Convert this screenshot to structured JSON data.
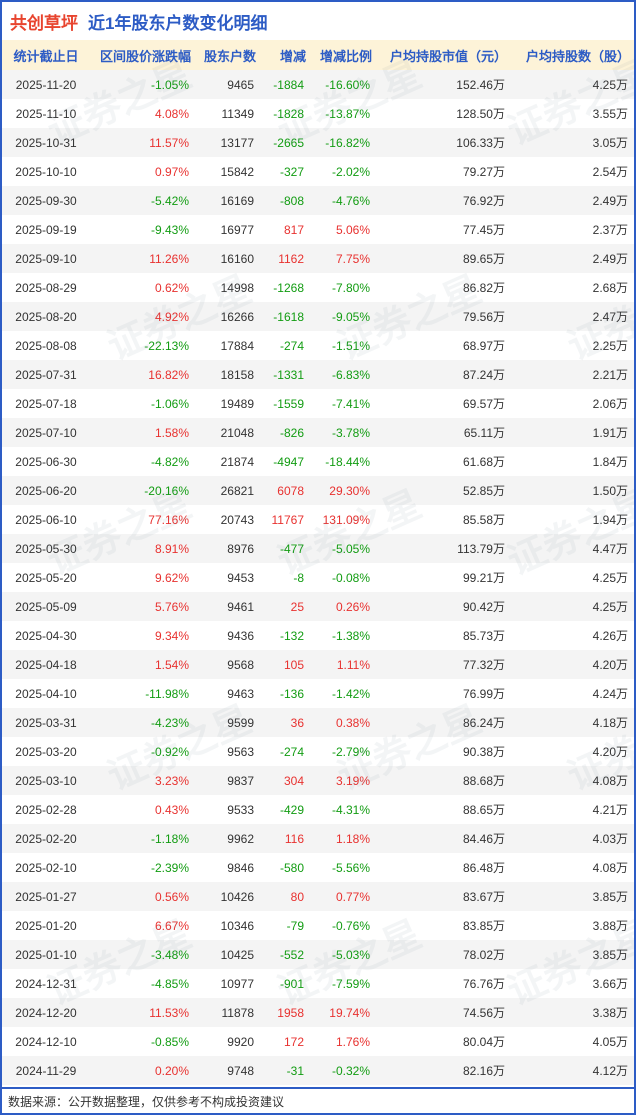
{
  "title": {
    "stock_name": "共创草坪",
    "subtitle": "近1年股东户数变化明细"
  },
  "watermark": "证券之星",
  "footer": {
    "source_note": "数据来源：公开数据整理，仅供参考不构成投资建议"
  },
  "colors": {
    "positive": "#e8312f",
    "negative": "#129c12",
    "header_text": "#2d5cc5",
    "header_bg": "#fdf3d8",
    "frame_border": "#2d5cc5",
    "title_stock": "#e8442e",
    "title_subtitle": "#2d5cc5"
  },
  "chart_data": {
    "type": "table",
    "title": "共创草坪 近1年股东户数变化明细",
    "columns": [
      "统计截止日",
      "区间股价涨跌幅",
      "股东户数",
      "增减",
      "增减比例",
      "户均持股市值（元）",
      "户均持股数（股）"
    ],
    "signed_columns": [
      1,
      3,
      4
    ],
    "rows": [
      [
        "2025-11-20",
        "-1.05%",
        "9465",
        "-1884",
        "-16.60%",
        "152.46万",
        "4.25万"
      ],
      [
        "2025-11-10",
        "4.08%",
        "11349",
        "-1828",
        "-13.87%",
        "128.50万",
        "3.55万"
      ],
      [
        "2025-10-31",
        "11.57%",
        "13177",
        "-2665",
        "-16.82%",
        "106.33万",
        "3.05万"
      ],
      [
        "2025-10-10",
        "0.97%",
        "15842",
        "-327",
        "-2.02%",
        "79.27万",
        "2.54万"
      ],
      [
        "2025-09-30",
        "-5.42%",
        "16169",
        "-808",
        "-4.76%",
        "76.92万",
        "2.49万"
      ],
      [
        "2025-09-19",
        "-9.43%",
        "16977",
        "817",
        "5.06%",
        "77.45万",
        "2.37万"
      ],
      [
        "2025-09-10",
        "11.26%",
        "16160",
        "1162",
        "7.75%",
        "89.65万",
        "2.49万"
      ],
      [
        "2025-08-29",
        "0.62%",
        "14998",
        "-1268",
        "-7.80%",
        "86.82万",
        "2.68万"
      ],
      [
        "2025-08-20",
        "4.92%",
        "16266",
        "-1618",
        "-9.05%",
        "79.56万",
        "2.47万"
      ],
      [
        "2025-08-08",
        "-22.13%",
        "17884",
        "-274",
        "-1.51%",
        "68.97万",
        "2.25万"
      ],
      [
        "2025-07-31",
        "16.82%",
        "18158",
        "-1331",
        "-6.83%",
        "87.24万",
        "2.21万"
      ],
      [
        "2025-07-18",
        "-1.06%",
        "19489",
        "-1559",
        "-7.41%",
        "69.57万",
        "2.06万"
      ],
      [
        "2025-07-10",
        "1.58%",
        "21048",
        "-826",
        "-3.78%",
        "65.11万",
        "1.91万"
      ],
      [
        "2025-06-30",
        "-4.82%",
        "21874",
        "-4947",
        "-18.44%",
        "61.68万",
        "1.84万"
      ],
      [
        "2025-06-20",
        "-20.16%",
        "26821",
        "6078",
        "29.30%",
        "52.85万",
        "1.50万"
      ],
      [
        "2025-06-10",
        "77.16%",
        "20743",
        "11767",
        "131.09%",
        "85.58万",
        "1.94万"
      ],
      [
        "2025-05-30",
        "8.91%",
        "8976",
        "-477",
        "-5.05%",
        "113.79万",
        "4.47万"
      ],
      [
        "2025-05-20",
        "9.62%",
        "9453",
        "-8",
        "-0.08%",
        "99.21万",
        "4.25万"
      ],
      [
        "2025-05-09",
        "5.76%",
        "9461",
        "25",
        "0.26%",
        "90.42万",
        "4.25万"
      ],
      [
        "2025-04-30",
        "9.34%",
        "9436",
        "-132",
        "-1.38%",
        "85.73万",
        "4.26万"
      ],
      [
        "2025-04-18",
        "1.54%",
        "9568",
        "105",
        "1.11%",
        "77.32万",
        "4.20万"
      ],
      [
        "2025-04-10",
        "-11.98%",
        "9463",
        "-136",
        "-1.42%",
        "76.99万",
        "4.24万"
      ],
      [
        "2025-03-31",
        "-4.23%",
        "9599",
        "36",
        "0.38%",
        "86.24万",
        "4.18万"
      ],
      [
        "2025-03-20",
        "-0.92%",
        "9563",
        "-274",
        "-2.79%",
        "90.38万",
        "4.20万"
      ],
      [
        "2025-03-10",
        "3.23%",
        "9837",
        "304",
        "3.19%",
        "88.68万",
        "4.08万"
      ],
      [
        "2025-02-28",
        "0.43%",
        "9533",
        "-429",
        "-4.31%",
        "88.65万",
        "4.21万"
      ],
      [
        "2025-02-20",
        "-1.18%",
        "9962",
        "116",
        "1.18%",
        "84.46万",
        "4.03万"
      ],
      [
        "2025-02-10",
        "-2.39%",
        "9846",
        "-580",
        "-5.56%",
        "86.48万",
        "4.08万"
      ],
      [
        "2025-01-27",
        "0.56%",
        "10426",
        "80",
        "0.77%",
        "83.67万",
        "3.85万"
      ],
      [
        "2025-01-20",
        "6.67%",
        "10346",
        "-79",
        "-0.76%",
        "83.85万",
        "3.88万"
      ],
      [
        "2025-01-10",
        "-3.48%",
        "10425",
        "-552",
        "-5.03%",
        "78.02万",
        "3.85万"
      ],
      [
        "2024-12-31",
        "-4.85%",
        "10977",
        "-901",
        "-7.59%",
        "76.76万",
        "3.66万"
      ],
      [
        "2024-12-20",
        "11.53%",
        "11878",
        "1958",
        "19.74%",
        "74.56万",
        "3.38万"
      ],
      [
        "2024-12-10",
        "-0.85%",
        "9920",
        "172",
        "1.76%",
        "80.04万",
        "4.05万"
      ],
      [
        "2024-11-29",
        "0.20%",
        "9748",
        "-31",
        "-0.32%",
        "82.16万",
        "4.12万"
      ]
    ]
  }
}
